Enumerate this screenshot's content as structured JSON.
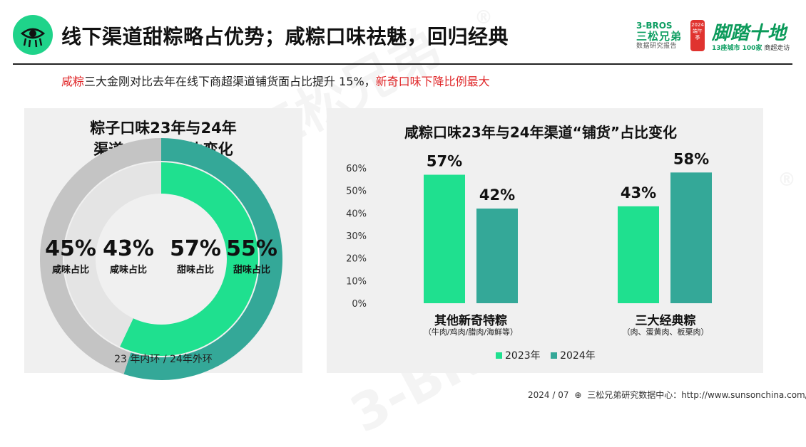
{
  "header": {
    "title": "线下渠道甜粽略占优势；咸粽口味祛魅，回归经典",
    "brand_en": "3-BROS",
    "brand_cn": "三松兄弟",
    "brand_sub": "数据研究报告",
    "lantern_text": "2024 端午季",
    "campaign_script": "脚踏十地",
    "campaign_sub_a": "13座城市 100家",
    "campaign_sub_b": "商超走访"
  },
  "subtitle": {
    "red_lead": "咸粽",
    "body": "三大金刚对比去年在线下商超渠道铺货面占比提升 15%，",
    "red_tail": "新奇口味下降比例最大"
  },
  "watermark": {
    "text": "3-BROS 三松兄弟",
    "reg": "®"
  },
  "colors": {
    "accent": "#1fe08f",
    "teal": "#34a898",
    "grey": "#c4c4c4",
    "light_grey": "#e4e4e4"
  },
  "chart_data": [
    {
      "type": "pie",
      "title_line1": "粽子口味23年与24年",
      "title_line2": "渠道“铺货”占比变化",
      "caption": "23 年内环 / 24年外环",
      "rings": [
        {
          "name": "23年",
          "position": "inner",
          "slices": [
            {
              "label": "甜味占比",
              "value": 57,
              "text": "57%",
              "color": "#1fe08f"
            },
            {
              "label": "咸味占比",
              "value": 43,
              "text": "43%",
              "color": "#e4e4e4"
            }
          ]
        },
        {
          "name": "24年",
          "position": "outer",
          "slices": [
            {
              "label": "甜味占比",
              "value": 55,
              "text": "55%",
              "color": "#34a898"
            },
            {
              "label": "咸味占比",
              "value": 45,
              "text": "45%",
              "color": "#c4c4c4"
            }
          ]
        }
      ]
    },
    {
      "type": "bar",
      "title": "咸粽口味23年与24年渠道“铺货”占比变化",
      "categories": [
        "其他新奇特粽",
        "三大经典粽"
      ],
      "category_notes": [
        "（牛肉/鸡肉/腊肉/海鲜等）",
        "（肉、蛋黄肉、板栗肉）"
      ],
      "series": [
        {
          "name": "2023年",
          "values": [
            57,
            43
          ],
          "labels": [
            "57%",
            "43%"
          ],
          "color": "#1fe08f"
        },
        {
          "name": "2024年",
          "values": [
            42,
            58
          ],
          "labels": [
            "42%",
            "58%"
          ],
          "color": "#34a898"
        }
      ],
      "ylim": [
        0,
        60
      ],
      "yticks": [
        "0%",
        "10%",
        "20%",
        "30%",
        "40%",
        "50%",
        "60%"
      ],
      "legend": "bottom",
      "grid": false
    }
  ],
  "footer": {
    "date": "2024 / 07",
    "source": "三松兄弟研究数据中心：http://www.sunsonchina.com/"
  }
}
